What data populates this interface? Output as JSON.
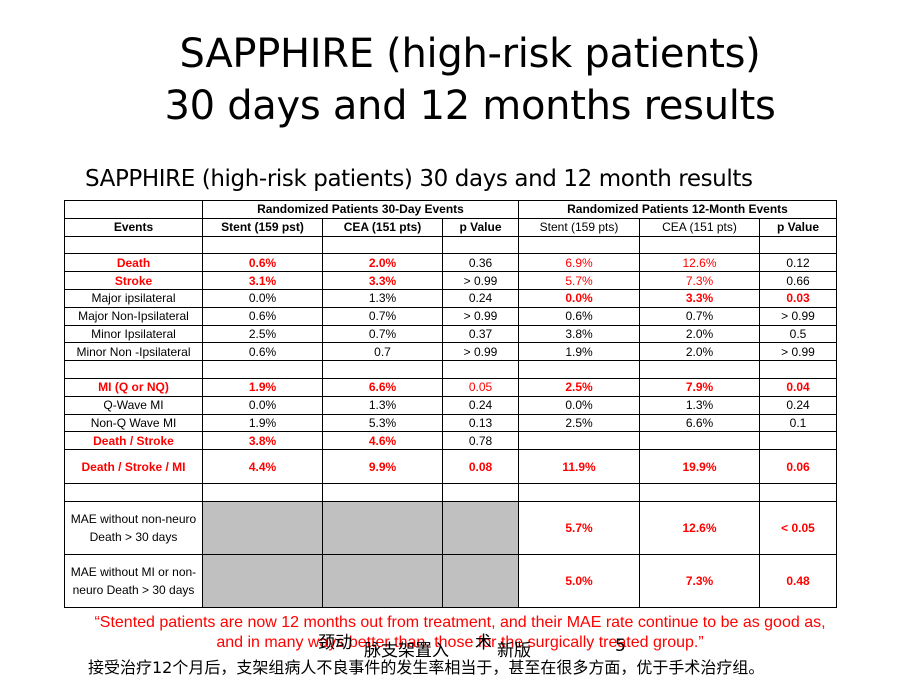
{
  "title_line1": "SAPPHIRE (high-risk patients)",
  "title_line2": "30 days and 12 months results",
  "subtitle": "SAPPHIRE (high-risk patients) 30 days and 12 month results",
  "table": {
    "group30": "Randomized Patients 30-Day Events",
    "group12": "Randomized Patients 12-Month Events",
    "headers": [
      "Events",
      "Stent (159 pst)",
      "CEA (151 pts)",
      "p Value",
      "Stent (159 pts)",
      "CEA (151 pts)",
      "p Value"
    ],
    "rows": [
      [
        "",
        "",
        "",
        "",
        "",
        "",
        ""
      ],
      [
        "Death",
        "0.6%",
        "2.0%",
        "0.36",
        "6.9%",
        "12.6%",
        "0.12"
      ],
      [
        "Stroke",
        "3.1%",
        "3.3%",
        "> 0.99",
        "5.7%",
        "7.3%",
        "0.66"
      ],
      [
        "Major ipsilateral",
        "0.0%",
        "1.3%",
        "0.24",
        "0.0%",
        "3.3%",
        "0.03"
      ],
      [
        "Major Non-Ipsilateral",
        "0.6%",
        "0.7%",
        "> 0.99",
        "0.6%",
        "0.7%",
        "> 0.99"
      ],
      [
        "Minor Ipsilateral",
        "2.5%",
        "0.7%",
        "0.37",
        "3.8%",
        "2.0%",
        "0.5"
      ],
      [
        "Minor Non -Ipsilateral",
        "0.6%",
        "0.7",
        "> 0.99",
        "1.9%",
        "2.0%",
        "> 0.99"
      ],
      [
        "",
        "",
        "",
        "",
        "",
        "",
        ""
      ],
      [
        "MI (Q or NQ)",
        "1.9%",
        "6.6%",
        "0.05",
        "2.5%",
        "7.9%",
        "0.04"
      ],
      [
        "Q-Wave MI",
        "0.0%",
        "1.3%",
        "0.24",
        "0.0%",
        "1.3%",
        "0.24"
      ],
      [
        "Non-Q Wave MI",
        "1.9%",
        "5.3%",
        "0.13",
        "2.5%",
        "6.6%",
        "0.1"
      ],
      [
        "Death / Stroke",
        "3.8%",
        "4.6%",
        "0.78",
        "",
        "",
        ""
      ],
      [
        "Death / Stroke / MI",
        "4.4%",
        "9.9%",
        "0.08",
        "11.9%",
        "19.9%",
        "0.06"
      ],
      [
        "",
        "",
        "",
        "",
        "",
        "",
        ""
      ],
      [
        "MAE without non-neuro Death > 30 days",
        "",
        "",
        "",
        "5.7%",
        "12.6%",
        "< 0.05"
      ],
      [
        "MAE without MI or non-neuro Death > 30 days",
        "",
        "",
        "",
        "5.0%",
        "7.3%",
        "0.48"
      ]
    ]
  },
  "quote": "“Stented patients are now 12 months out from treatment, and their MAE rate continue to be as good as, and in many ways better than, those for the surgically treated group.”",
  "chinese": "接受治疗12个月后，支架组病人不良事件的发生率相当于，甚至在很多方面，优于手术治疗组。",
  "watermark": {
    "a": "颈动",
    "b": "脉支架置入",
    "c": "术",
    "d": "新版",
    "page": "5"
  },
  "colors": {
    "red": "#ff0000",
    "gray_cell": "#c0c0c0"
  }
}
